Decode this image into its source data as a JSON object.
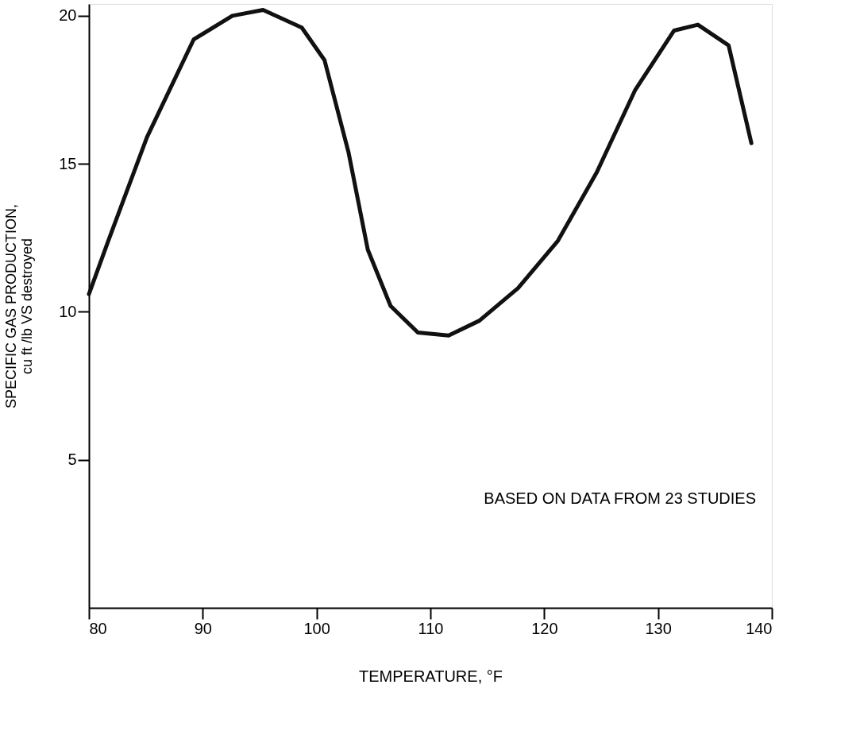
{
  "chart_data": {
    "type": "line",
    "xlabel": "TEMPERATURE, °F",
    "ylabel": "SPECIFIC GAS PRODUCTION,\ncu ft /lb VS destroyed",
    "x": [
      80,
      81.7,
      85.1,
      89.2,
      92.6,
      95.3,
      98.7,
      100.7,
      102.8,
      104.5,
      106.5,
      108.9,
      111.6,
      114.3,
      117.7,
      121.2,
      124.6,
      128,
      131.4,
      133.5,
      136.2,
      138.2
    ],
    "series": [
      {
        "color": "#111111",
        "values": [
          10.6,
          12.4,
          15.9,
          19.2,
          20.0,
          20.2,
          19.6,
          18.5,
          15.4,
          12.1,
          10.2,
          9.3,
          9.2,
          9.7,
          10.8,
          12.4,
          14.7,
          17.5,
          19.5,
          19.7,
          19.0,
          15.7
        ]
      }
    ],
    "xlim": [
      80,
      140
    ],
    "xticks": [
      80,
      90,
      100,
      110,
      120,
      130,
      140
    ],
    "ylim": [
      0,
      20.4
    ],
    "yticks": [
      5,
      10,
      15,
      20
    ],
    "grid": false,
    "marker": "none",
    "line_style": "solid",
    "annotations": [
      "BASED ON DATA FROM 23 STUDIES"
    ]
  }
}
